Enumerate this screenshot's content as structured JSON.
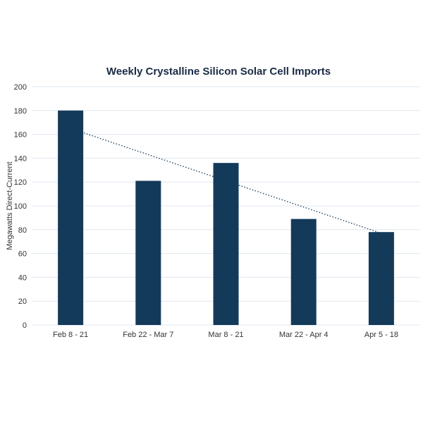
{
  "chart_data": {
    "type": "bar",
    "title": "Weekly Crystalline Silicon Solar Cell Imports",
    "xlabel": "",
    "ylabel": "Megawatts Direct-Current",
    "categories": [
      "Feb 8 - 21",
      "Feb 22 - Mar 7",
      "Mar 8 - 21",
      "Mar 22 - Apr 4",
      "Apr 5 - 18"
    ],
    "values": [
      180,
      121,
      136,
      89,
      78
    ],
    "ylim": [
      0,
      200
    ],
    "yticks": [
      0,
      20,
      40,
      60,
      80,
      100,
      120,
      140,
      160,
      180,
      200
    ],
    "grid": true,
    "trendline": {
      "type": "linear",
      "style": "dotted",
      "start": 165,
      "end": 77
    },
    "colors": {
      "bar": "#143a5a",
      "trendline": "#143a5a",
      "grid": "#dfe7f0"
    }
  }
}
